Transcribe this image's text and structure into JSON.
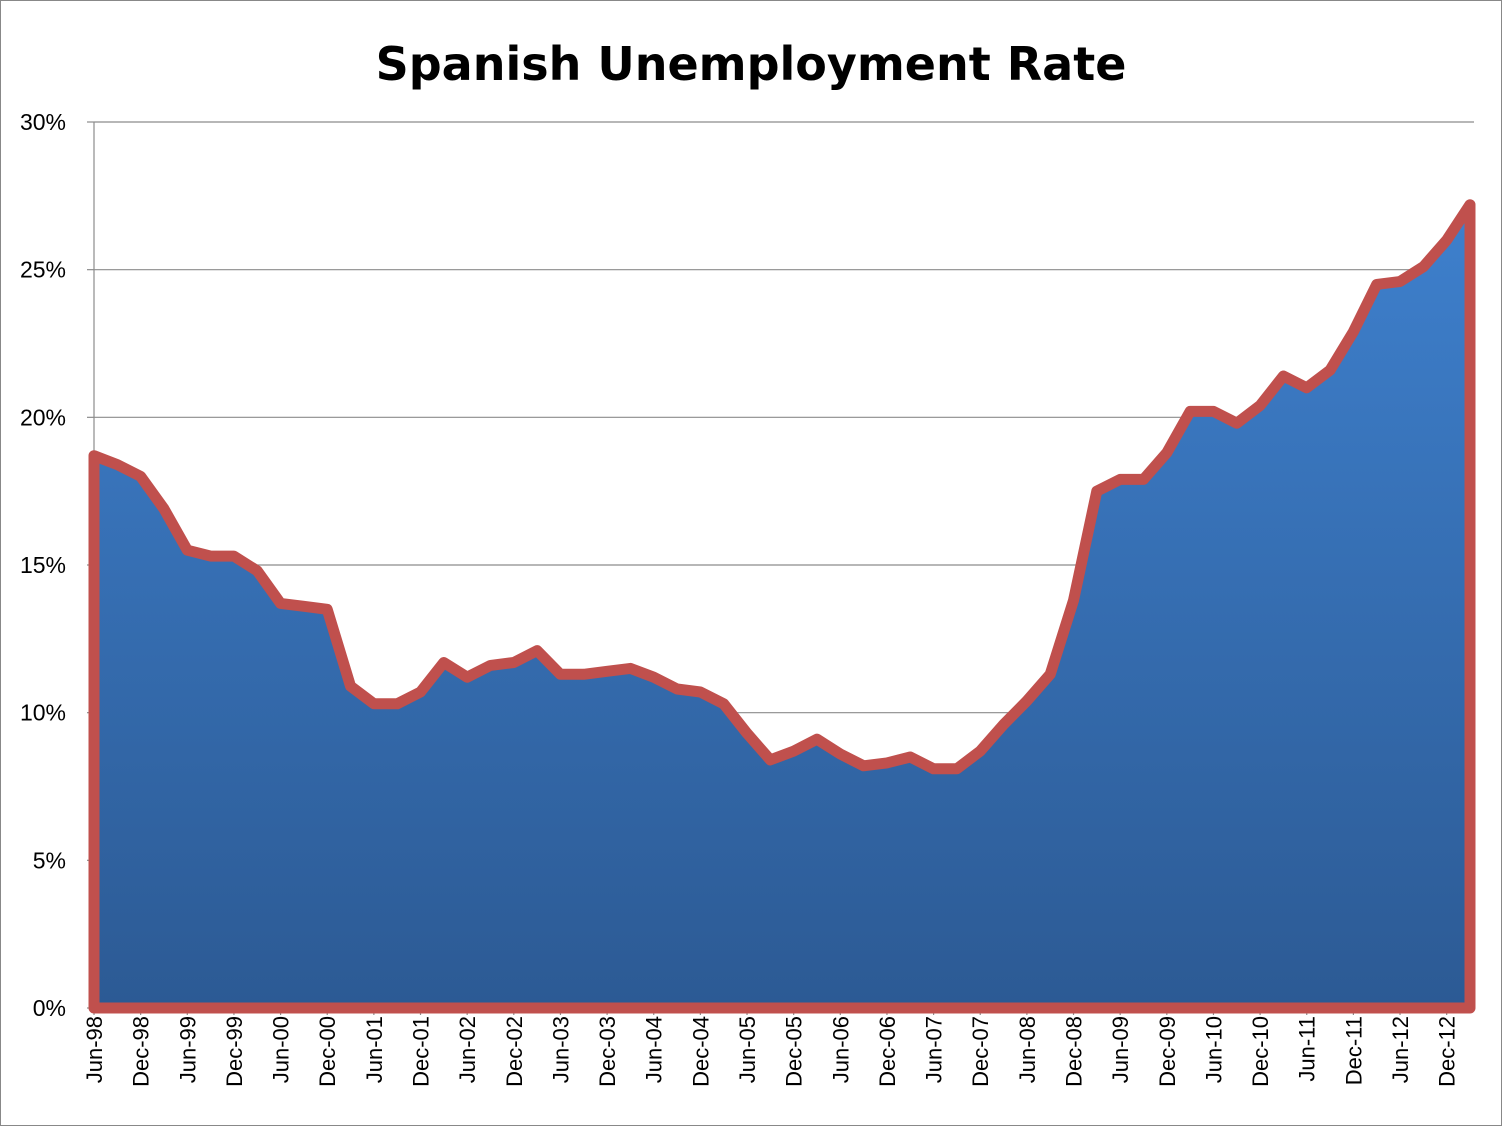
{
  "chart_data": {
    "type": "area",
    "title": "Spanish Unemployment Rate",
    "xlabel": "",
    "ylabel": "",
    "ylim": [
      0,
      30
    ],
    "y_tick_labels": [
      "0%",
      "5%",
      "10%",
      "15%",
      "20%",
      "25%",
      "30%"
    ],
    "y_ticks": [
      0,
      5,
      10,
      15,
      20,
      25,
      30
    ],
    "x_tick_labels": [
      "Jun-98",
      "Dec-98",
      "Jun-99",
      "Dec-99",
      "Jun-00",
      "Dec-00",
      "Jun-01",
      "Dec-01",
      "Jun-02",
      "Dec-02",
      "Jun-03",
      "Dec-03",
      "Jun-04",
      "Dec-04",
      "Jun-05",
      "Dec-05",
      "Jun-06",
      "Dec-06",
      "Jun-07",
      "Dec-07",
      "Jun-08",
      "Dec-08",
      "Jun-09",
      "Dec-09",
      "Jun-10",
      "Dec-10",
      "Jun-11",
      "Dec-11",
      "Jun-12",
      "Dec-12"
    ],
    "grid": true,
    "legend": "none",
    "series": [
      {
        "name": "Spanish Unemployment Rate",
        "values": [
          18.7,
          18.4,
          18.0,
          16.9,
          15.5,
          15.3,
          15.3,
          14.8,
          13.7,
          13.6,
          13.5,
          10.9,
          10.3,
          10.3,
          10.7,
          11.7,
          11.2,
          11.6,
          11.7,
          12.1,
          11.3,
          11.3,
          11.4,
          11.5,
          11.2,
          10.8,
          10.7,
          10.3,
          9.3,
          8.4,
          8.7,
          9.1,
          8.6,
          8.2,
          8.3,
          8.5,
          8.1,
          8.1,
          8.7,
          9.6,
          10.4,
          11.3,
          13.8,
          17.5,
          17.9,
          17.9,
          18.8,
          20.2,
          20.2,
          19.8,
          20.4,
          21.4,
          21.0,
          21.6,
          22.9,
          24.5,
          24.6,
          25.1,
          26.0,
          27.2
        ],
        "fill_top": "#3e80cd",
        "fill_bottom": "#2c5a94",
        "line_color": "#c0504d"
      }
    ]
  }
}
